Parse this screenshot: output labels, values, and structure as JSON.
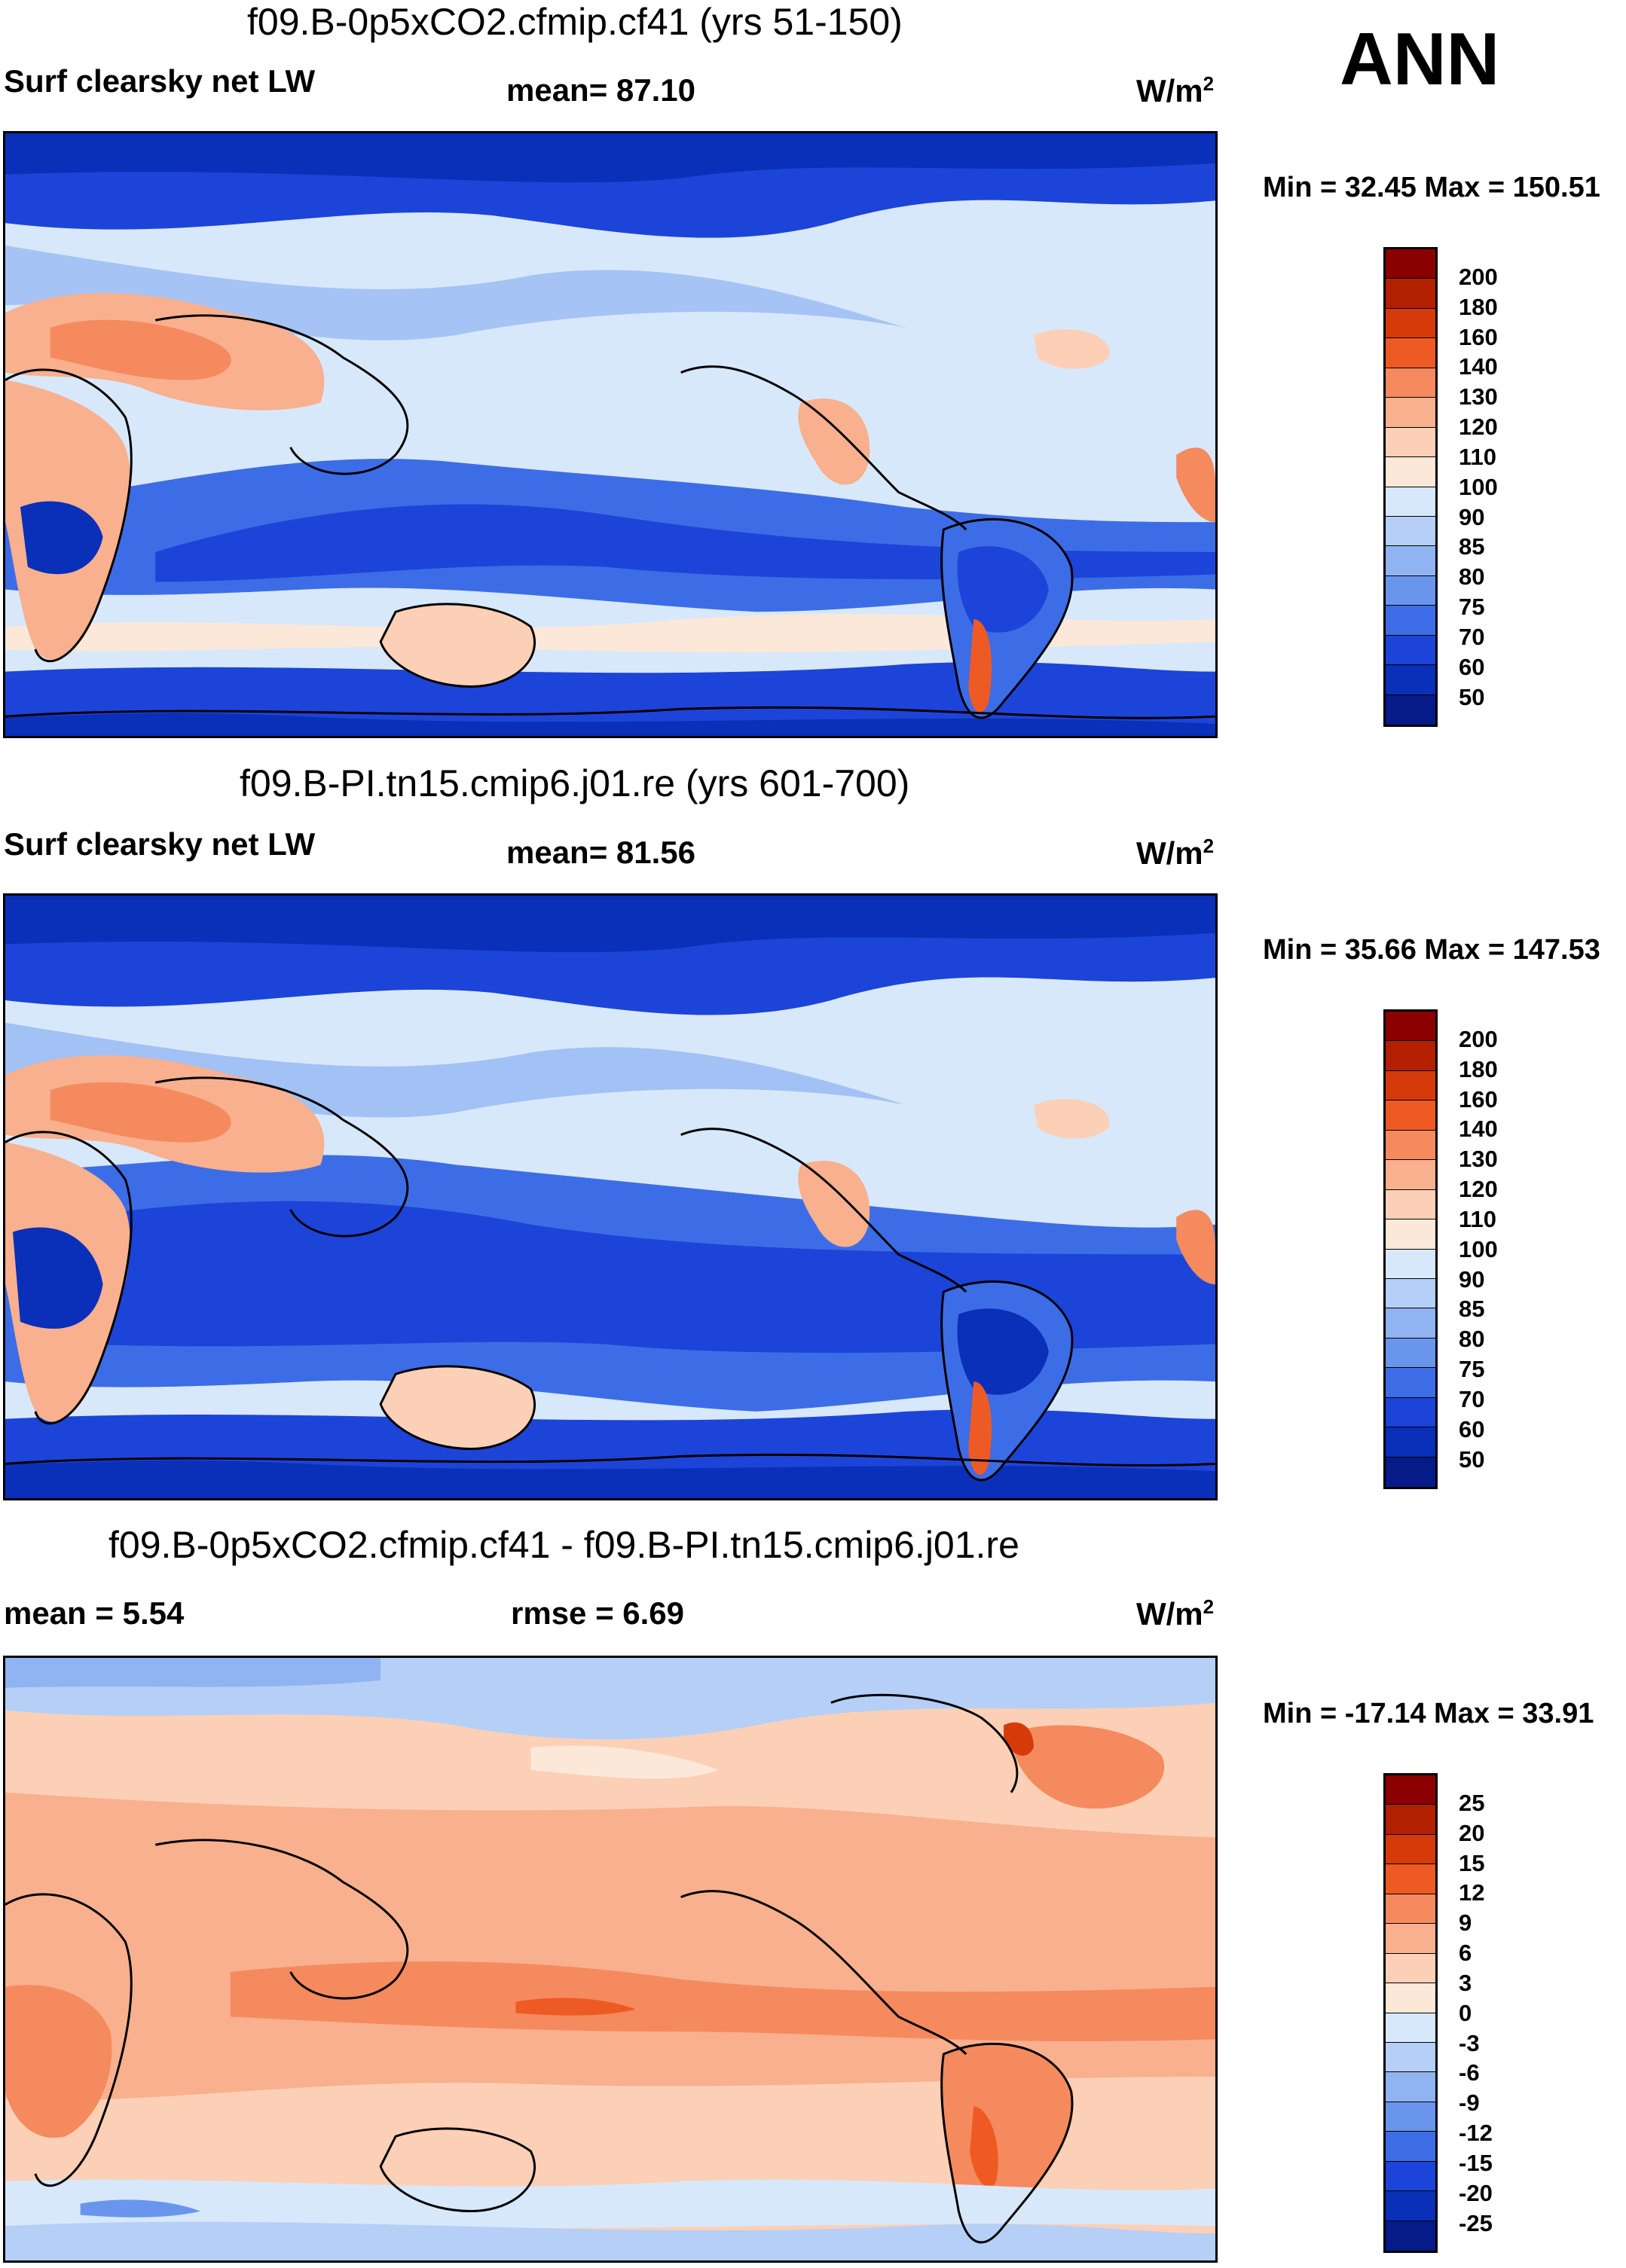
{
  "season_label": "ANN",
  "panels": [
    {
      "title": "f09.B-0p5xCO2.cfmip.cf41 (yrs 51-150)",
      "left_label": "Surf clearsky net LW",
      "center_label": "mean=  87.10",
      "units_base": "W/m",
      "units_sup": "2",
      "minmax": "Min =  32.45 Max = 150.51",
      "colorbar_labels": [
        "200",
        "180",
        "160",
        "140",
        "130",
        "120",
        "110",
        "100",
        "90",
        "85",
        "80",
        "75",
        "70",
        "60",
        "50"
      ]
    },
    {
      "title": "f09.B-PI.tn15.cmip6.j01.re (yrs 601-700)",
      "left_label": "Surf clearsky net LW",
      "center_label": "mean=  81.56",
      "units_base": "W/m",
      "units_sup": "2",
      "minmax": "Min =  35.66 Max = 147.53",
      "colorbar_labels": [
        "200",
        "180",
        "160",
        "140",
        "130",
        "120",
        "110",
        "100",
        "90",
        "85",
        "80",
        "75",
        "70",
        "60",
        "50"
      ]
    },
    {
      "title": "f09.B-0p5xCO2.cfmip.cf41 - f09.B-PI.tn15.cmip6.j01.re",
      "left_label": "mean =   5.54",
      "center_label": "rmse =   6.69",
      "units_base": "W/m",
      "units_sup": "2",
      "minmax": "Min = -17.14 Max =  33.91",
      "colorbar_labels": [
        "25",
        "20",
        "15",
        "12",
        "9",
        "6",
        "3",
        "0",
        "-3",
        "-6",
        "-9",
        "-12",
        "-15",
        "-20",
        "-25"
      ]
    }
  ],
  "colors": {
    "abs_scale": [
      "#8b0000",
      "#b22000",
      "#d63a0a",
      "#ee5a24",
      "#f58a5e",
      "#f8b08e",
      "#fbd0b6",
      "#fbe8d8",
      "#d8e8fb",
      "#b5cff7",
      "#90b4f2",
      "#6a95ec",
      "#3d6de6",
      "#1d44d8",
      "#0a2fb8",
      "#061a88"
    ],
    "diff_scale": [
      "#8b0000",
      "#b22000",
      "#d63a0a",
      "#ee5a24",
      "#f58a5e",
      "#f8b08e",
      "#fbd0b6",
      "#fbe8d8",
      "#d8e8fb",
      "#b5cff7",
      "#90b4f2",
      "#6a95ec",
      "#3d6de6",
      "#1d44d8",
      "#0a2fb8",
      "#061a88"
    ]
  },
  "chart_data": [
    {
      "type": "heatmap",
      "title": "f09.B-0p5xCO2.cfmip.cf41 (yrs 51-150)",
      "variable": "Surf clearsky net LW",
      "units": "W/m2",
      "season": "ANN",
      "mean": 87.1,
      "min": 32.45,
      "max": 150.51,
      "contour_levels": [
        50,
        60,
        70,
        75,
        80,
        85,
        90,
        100,
        110,
        120,
        130,
        140,
        160,
        180,
        200
      ],
      "projection": "global lat-lon, Pacific-centered"
    },
    {
      "type": "heatmap",
      "title": "f09.B-PI.tn15.cmip6.j01.re (yrs 601-700)",
      "variable": "Surf clearsky net LW",
      "units": "W/m2",
      "season": "ANN",
      "mean": 81.56,
      "min": 35.66,
      "max": 147.53,
      "contour_levels": [
        50,
        60,
        70,
        75,
        80,
        85,
        90,
        100,
        110,
        120,
        130,
        140,
        160,
        180,
        200
      ],
      "projection": "global lat-lon, Pacific-centered"
    },
    {
      "type": "heatmap",
      "title": "f09.B-0p5xCO2.cfmip.cf41 - f09.B-PI.tn15.cmip6.j01.re",
      "variable": "difference",
      "units": "W/m2",
      "season": "ANN",
      "mean": 5.54,
      "rmse": 6.69,
      "min": -17.14,
      "max": 33.91,
      "contour_levels": [
        -25,
        -20,
        -15,
        -12,
        -9,
        -6,
        -3,
        0,
        3,
        6,
        9,
        12,
        15,
        20,
        25
      ],
      "projection": "global lat-lon, Pacific-centered"
    }
  ]
}
